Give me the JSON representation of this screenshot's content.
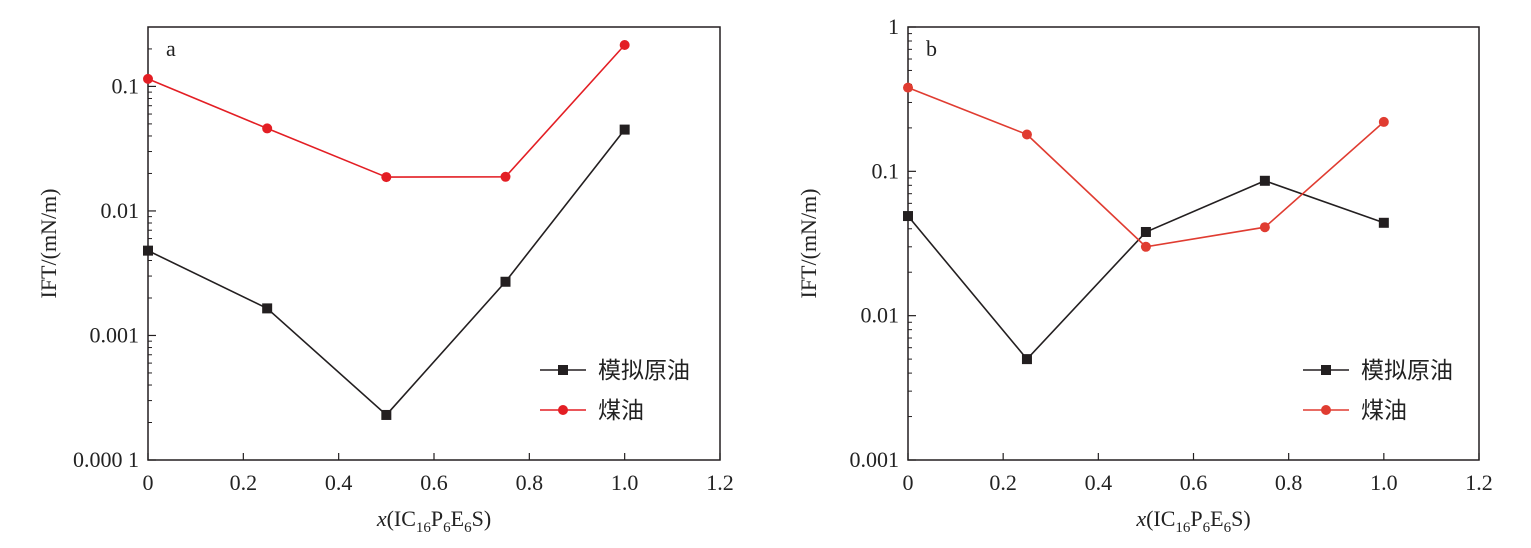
{
  "chart_data": [
    {
      "type": "line",
      "panel_label": "a",
      "xlabel": "x(IC16P6E6S)",
      "ylabel": "IFT/(mN/m)",
      "xlim": [
        0,
        1.2
      ],
      "ylim": [
        0.0001,
        0.3
      ],
      "yscale": "log",
      "x_ticks": [
        "0",
        "0.2",
        "0.4",
        "0.6",
        "0.8",
        "1.0",
        "1.2"
      ],
      "y_ticks": [
        {
          "value": 0.0001,
          "label": "0.000 1"
        },
        {
          "value": 0.001,
          "label": "0.001"
        },
        {
          "value": 0.01,
          "label": "0.01"
        },
        {
          "value": 0.1,
          "label": "0.1"
        }
      ],
      "legend_position": "lower-right",
      "grid": false,
      "series": [
        {
          "name": "模拟原油",
          "color": "#231f20",
          "marker": "square",
          "x": [
            0,
            0.25,
            0.5,
            0.75,
            1.0
          ],
          "values": [
            0.0048,
            0.00165,
            0.00023,
            0.0027,
            0.045
          ]
        },
        {
          "name": "煤油",
          "color": "#e31e24",
          "marker": "circle",
          "x": [
            0,
            0.25,
            0.5,
            0.75,
            1.0
          ],
          "values": [
            0.115,
            0.046,
            0.0187,
            0.0188,
            0.215
          ]
        }
      ]
    },
    {
      "type": "line",
      "panel_label": "b",
      "xlabel": "x(IC16P6E6S)",
      "ylabel": "IFT/(mN/m)",
      "xlim": [
        0,
        1.2
      ],
      "ylim": [
        0.001,
        1
      ],
      "yscale": "log",
      "x_ticks": [
        "0",
        "0.2",
        "0.4",
        "0.6",
        "0.8",
        "1.0",
        "1.2"
      ],
      "y_ticks": [
        {
          "value": 0.001,
          "label": "0.001"
        },
        {
          "value": 0.01,
          "label": "0.01"
        },
        {
          "value": 0.1,
          "label": "0.1"
        },
        {
          "value": 1,
          "label": "1"
        }
      ],
      "legend_position": "lower-right",
      "grid": false,
      "series": [
        {
          "name": "模拟原油",
          "color": "#231f20",
          "marker": "square",
          "x": [
            0,
            0.25,
            0.5,
            0.75,
            1.0
          ],
          "values": [
            0.049,
            0.005,
            0.038,
            0.086,
            0.044
          ]
        },
        {
          "name": "煤油",
          "color": "#e03c31",
          "marker": "circle",
          "x": [
            0,
            0.25,
            0.5,
            0.75,
            1.0
          ],
          "values": [
            0.38,
            0.18,
            0.03,
            0.041,
            0.22
          ]
        }
      ]
    }
  ]
}
